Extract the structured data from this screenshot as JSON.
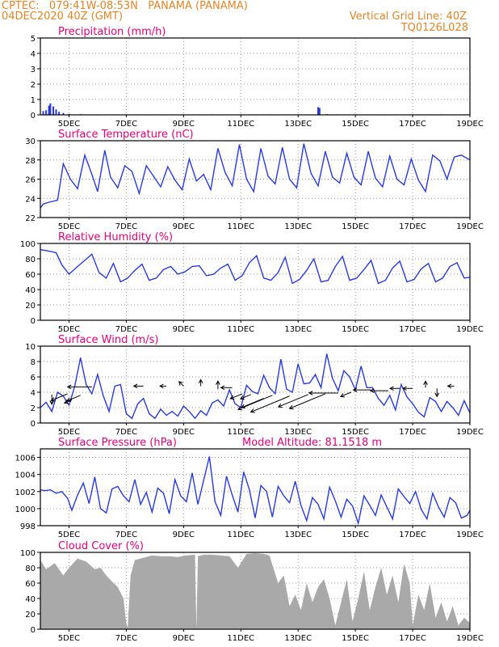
{
  "header": {
    "line1": "CPTEC:   079:41W-08:53N   PANAMA (PANAMA)",
    "line2_left": "04DEC2020 40Z (GMT)",
    "line2_right": "Vertical Grid Line: 40Z",
    "line3_right": "TQ0126L028"
  },
  "colors": {
    "header": "#e0852a",
    "title": "#e0007a",
    "line": "#2a3ad8",
    "cloud": "#a9a9a9",
    "grid": "#999999"
  },
  "x_axis": {
    "start": "04DEC2020 00Z",
    "end": "19DEC2020 00Z",
    "tick_labels": [
      "5DEC",
      "7DEC",
      "9DEC",
      "11DEC",
      "13DEC",
      "15DEC",
      "17DEC",
      "19DEC"
    ],
    "tick_days": [
      5,
      7,
      9,
      11,
      13,
      15,
      17,
      19
    ]
  },
  "chart_data": [
    {
      "id": "precip",
      "type": "bar",
      "title": "Precipitation (mm/h)",
      "ylim": [
        0,
        5
      ],
      "yticks": [
        0,
        1,
        2,
        3,
        4,
        5
      ],
      "x": [
        4.1,
        4.2,
        4.3,
        4.35,
        4.45,
        4.55,
        4.65,
        4.8,
        5.0,
        5.4,
        6.0,
        7.0,
        8.0,
        9.0,
        10.0,
        11.0,
        12.0,
        13.0,
        13.7,
        13.75,
        14.0,
        15.0,
        16.0,
        17.0,
        18.0,
        18.8
      ],
      "values": [
        0.25,
        0.3,
        0.6,
        0.75,
        0.55,
        0.35,
        0.2,
        0.12,
        0.06,
        0.04,
        0.03,
        0.03,
        0.03,
        0.03,
        0.03,
        0.03,
        0.03,
        0.03,
        0.5,
        0.45,
        0.05,
        0.03,
        0.03,
        0.03,
        0.03,
        0.03
      ]
    },
    {
      "id": "temp",
      "type": "line",
      "title": "Surface Temperature (nC)",
      "ylim": [
        22,
        30
      ],
      "yticks": [
        22,
        24,
        26,
        28,
        30
      ],
      "x": [
        4.0,
        4.1,
        4.3,
        4.6,
        4.8,
        5.05,
        5.3,
        5.55,
        5.8,
        6.0,
        6.25,
        6.45,
        6.7,
        6.95,
        7.2,
        7.45,
        7.7,
        7.95,
        8.2,
        8.45,
        8.7,
        8.95,
        9.2,
        9.45,
        9.7,
        9.95,
        10.2,
        10.45,
        10.7,
        10.95,
        11.2,
        11.45,
        11.7,
        11.95,
        12.2,
        12.45,
        12.7,
        12.95,
        13.2,
        13.45,
        13.7,
        13.95,
        14.2,
        14.45,
        14.7,
        14.95,
        15.2,
        15.45,
        15.7,
        15.95,
        16.2,
        16.45,
        16.7,
        16.95,
        17.2,
        17.45,
        17.7,
        17.95,
        18.2,
        18.45,
        18.7,
        19.0
      ],
      "values": [
        23.0,
        23.4,
        23.6,
        23.8,
        27.6,
        26.0,
        25.0,
        28.5,
        26.5,
        24.7,
        29.0,
        26.2,
        25.1,
        27.4,
        26.8,
        24.5,
        27.4,
        26.3,
        25.2,
        27.3,
        25.9,
        24.9,
        28.1,
        25.8,
        26.5,
        24.9,
        29.2,
        26.7,
        25.3,
        29.6,
        26.0,
        24.7,
        29.2,
        26.3,
        25.5,
        29.3,
        26.0,
        25.1,
        29.7,
        26.6,
        25.3,
        28.9,
        26.2,
        25.6,
        28.7,
        26.2,
        25.4,
        28.9,
        26.1,
        25.2,
        28.4,
        26.0,
        25.4,
        28.1,
        25.9,
        24.7,
        28.5,
        27.9,
        26.0,
        28.3,
        28.5,
        28.0
      ]
    },
    {
      "id": "rh",
      "type": "line",
      "title": "Relative Humidity (%)",
      "ylim": [
        0,
        100
      ],
      "yticks": [
        0,
        20,
        40,
        60,
        80,
        100
      ],
      "x": [
        4.0,
        4.3,
        4.55,
        4.75,
        5.0,
        5.3,
        5.55,
        5.8,
        6.05,
        6.3,
        6.55,
        6.8,
        7.05,
        7.3,
        7.55,
        7.8,
        8.05,
        8.3,
        8.55,
        8.8,
        9.05,
        9.3,
        9.55,
        9.8,
        10.05,
        10.3,
        10.55,
        10.8,
        11.05,
        11.3,
        11.55,
        11.8,
        12.05,
        12.3,
        12.55,
        12.8,
        13.05,
        13.3,
        13.55,
        13.8,
        14.05,
        14.3,
        14.55,
        14.8,
        15.05,
        15.3,
        15.55,
        15.8,
        16.05,
        16.3,
        16.55,
        16.8,
        17.05,
        17.3,
        17.55,
        17.8,
        18.05,
        18.3,
        18.55,
        18.8,
        19.0
      ],
      "values": [
        92,
        90,
        88,
        72,
        60,
        70,
        78,
        86,
        62,
        55,
        74,
        50,
        55,
        65,
        73,
        52,
        55,
        66,
        70,
        60,
        63,
        70,
        71,
        58,
        60,
        68,
        73,
        52,
        58,
        75,
        84,
        55,
        52,
        62,
        82,
        48,
        53,
        65,
        80,
        50,
        52,
        70,
        83,
        52,
        55,
        66,
        78,
        48,
        52,
        68,
        77,
        50,
        53,
        67,
        74,
        50,
        55,
        70,
        75,
        55,
        56
      ]
    },
    {
      "id": "wind",
      "type": "line",
      "title": "Surface Wind (m/s)",
      "ylim": [
        0,
        10
      ],
      "yticks": [
        0,
        2,
        4,
        6,
        8,
        10
      ],
      "x": [
        4.0,
        4.2,
        4.4,
        4.6,
        4.8,
        5.0,
        5.2,
        5.4,
        5.6,
        5.8,
        6.0,
        6.2,
        6.4,
        6.6,
        6.8,
        7.0,
        7.2,
        7.4,
        7.6,
        7.8,
        8.0,
        8.2,
        8.4,
        8.6,
        8.8,
        9.0,
        9.2,
        9.4,
        9.6,
        9.8,
        10.0,
        10.2,
        10.4,
        10.6,
        10.8,
        11.0,
        11.2,
        11.4,
        11.6,
        11.8,
        12.0,
        12.2,
        12.4,
        12.6,
        12.8,
        13.0,
        13.2,
        13.4,
        13.6,
        13.8,
        14.0,
        14.2,
        14.4,
        14.6,
        14.8,
        15.0,
        15.2,
        15.4,
        15.6,
        15.8,
        16.0,
        16.2,
        16.4,
        16.6,
        16.8,
        17.0,
        17.2,
        17.4,
        17.6,
        17.8,
        18.0,
        18.2,
        18.4,
        18.6,
        18.8,
        19.0
      ],
      "values": [
        2.0,
        2.7,
        1.5,
        4.0,
        3.5,
        2.3,
        4.8,
        8.5,
        5.0,
        3.8,
        6.3,
        3.5,
        1.5,
        4.8,
        5.0,
        1.2,
        0.6,
        2.5,
        3.2,
        1.2,
        0.6,
        1.8,
        1.0,
        1.5,
        0.9,
        2.2,
        1.5,
        0.6,
        1.6,
        1.0,
        2.6,
        3.0,
        2.2,
        4.3,
        2.5,
        2.0,
        4.9,
        4.1,
        3.8,
        6.2,
        4.6,
        3.8,
        8.3,
        4.4,
        4.0,
        7.7,
        5.1,
        5.2,
        6.3,
        4.6,
        9.0,
        5.8,
        4.2,
        6.8,
        6.0,
        4.3,
        7.4,
        4.6,
        4.6,
        3.2,
        2.3,
        3.6,
        1.7,
        5.0,
        3.4,
        2.5,
        1.4,
        0.8,
        3.3,
        2.8,
        1.5,
        2.8,
        2.0,
        1.0,
        2.9,
        1.3
      ],
      "arrows": [
        {
          "x": 4.4,
          "y": 3.7,
          "dir": "s",
          "len": 12
        },
        {
          "x": 4.95,
          "y": 3.8,
          "dir": "sw",
          "len": 22
        },
        {
          "x": 5.1,
          "y": 3.0,
          "dir": "sw",
          "len": 10
        },
        {
          "x": 5.4,
          "y": 3.6,
          "dir": "sw",
          "len": 18
        },
        {
          "x": 5.8,
          "y": 4.7,
          "dir": "w",
          "len": 30
        },
        {
          "x": 7.6,
          "y": 4.8,
          "dir": "w",
          "len": 12
        },
        {
          "x": 8.4,
          "y": 4.8,
          "dir": "w",
          "len": 8
        },
        {
          "x": 9.0,
          "y": 4.8,
          "dir": "nw",
          "len": 8
        },
        {
          "x": 9.6,
          "y": 4.8,
          "dir": "n",
          "len": 8
        },
        {
          "x": 10.2,
          "y": 4.4,
          "dir": "n",
          "len": 10
        },
        {
          "x": 10.7,
          "y": 4.6,
          "dir": "w",
          "len": 14
        },
        {
          "x": 11.05,
          "y": 3.8,
          "dir": "sw",
          "len": 16
        },
        {
          "x": 11.35,
          "y": 3.7,
          "dir": "sw",
          "len": 14
        },
        {
          "x": 11.8,
          "y": 3.2,
          "dir": "sw",
          "len": 30
        },
        {
          "x": 12.1,
          "y": 3.6,
          "dir": "sw",
          "len": 46
        },
        {
          "x": 12.7,
          "y": 3.5,
          "dir": "sw",
          "len": 52
        },
        {
          "x": 13.35,
          "y": 3.7,
          "dir": "sw",
          "len": 40
        },
        {
          "x": 13.95,
          "y": 3.8,
          "dir": "sw",
          "len": 48
        },
        {
          "x": 14.4,
          "y": 3.9,
          "dir": "w",
          "len": 36
        },
        {
          "x": 14.85,
          "y": 4.0,
          "dir": "sw",
          "len": 14
        },
        {
          "x": 15.55,
          "y": 4.3,
          "dir": "w",
          "len": 22
        },
        {
          "x": 16.15,
          "y": 4.2,
          "dir": "w",
          "len": 22
        },
        {
          "x": 16.55,
          "y": 4.5,
          "dir": "w",
          "len": 12
        },
        {
          "x": 17.0,
          "y": 4.5,
          "dir": "w",
          "len": 12
        },
        {
          "x": 17.45,
          "y": 4.6,
          "dir": "n",
          "len": 8
        },
        {
          "x": 17.85,
          "y": 4.5,
          "dir": "s",
          "len": 10
        },
        {
          "x": 18.45,
          "y": 4.8,
          "dir": "w",
          "len": 8
        }
      ]
    },
    {
      "id": "pres",
      "type": "line",
      "title": "Surface Pressure (hPa)",
      "subtitle": "Model Altitude: 81.1518 m",
      "ylim": [
        998,
        1007
      ],
      "yticks": [
        998,
        1000,
        1002,
        1004,
        1006
      ],
      "x": [
        4.0,
        4.15,
        4.35,
        4.55,
        4.75,
        4.95,
        5.1,
        5.3,
        5.5,
        5.7,
        5.9,
        6.1,
        6.3,
        6.5,
        6.7,
        6.9,
        7.1,
        7.3,
        7.5,
        7.7,
        7.9,
        8.1,
        8.3,
        8.5,
        8.7,
        8.9,
        9.1,
        9.3,
        9.5,
        9.7,
        9.9,
        10.1,
        10.3,
        10.5,
        10.7,
        10.9,
        11.1,
        11.3,
        11.5,
        11.7,
        11.9,
        12.1,
        12.3,
        12.5,
        12.7,
        12.9,
        13.1,
        13.3,
        13.5,
        13.7,
        13.9,
        14.1,
        14.3,
        14.5,
        14.7,
        14.9,
        15.1,
        15.3,
        15.5,
        15.7,
        15.9,
        16.1,
        16.3,
        16.5,
        16.7,
        16.9,
        17.1,
        17.3,
        17.5,
        17.7,
        17.9,
        18.1,
        18.3,
        18.5,
        18.7,
        18.9,
        19.0
      ],
      "values": [
        1002.2,
        1002.1,
        1002.2,
        1001.8,
        1002.0,
        1001.2,
        999.8,
        1001.6,
        1003.0,
        1000.6,
        1003.7,
        1000.0,
        999.5,
        1002.3,
        1002.6,
        1001.5,
        1000.8,
        1003.4,
        1000.5,
        1001.9,
        999.6,
        1002.4,
        1001.8,
        999.4,
        1003.4,
        1001.5,
        1000.8,
        1004.2,
        1000.5,
        1003.3,
        1006.1,
        1000.8,
        999.2,
        1003.8,
        1001.6,
        999.6,
        1004.3,
        1002.2,
        998.9,
        1002.7,
        1002.0,
        999.0,
        1002.6,
        1001.5,
        1000.7,
        1003.2,
        1000.4,
        998.6,
        1001.3,
        1000.5,
        998.8,
        1002.5,
        1000.9,
        999.0,
        1001.1,
        1000.3,
        998.3,
        1001.5,
        1000.4,
        999.2,
        1001.6,
        1000.2,
        998.8,
        1002.3,
        1001.4,
        1000.6,
        1002.0,
        999.9,
        998.8,
        1001.8,
        1000.2,
        999.0,
        1001.3,
        1000.7,
        998.9,
        999.2,
        999.8
      ]
    },
    {
      "id": "cloud",
      "type": "area",
      "title": "Cloud Cover (%)",
      "ylim": [
        0,
        100
      ],
      "yticks": [
        0,
        20,
        40,
        60,
        80,
        100
      ],
      "x": [
        4.0,
        4.2,
        4.5,
        4.8,
        5.0,
        5.3,
        5.6,
        5.9,
        6.1,
        6.3,
        6.5,
        6.7,
        6.9,
        7.0,
        7.05,
        7.15,
        7.3,
        7.6,
        7.9,
        8.2,
        8.5,
        8.8,
        9.1,
        9.4,
        9.45,
        9.5,
        9.7,
        10.0,
        10.3,
        10.6,
        10.9,
        11.2,
        11.5,
        11.8,
        12.0,
        12.3,
        12.5,
        12.7,
        12.9,
        13.1,
        13.3,
        13.5,
        13.7,
        13.9,
        14.1,
        14.3,
        14.5,
        14.7,
        14.9,
        15.1,
        15.3,
        15.5,
        15.7,
        15.9,
        16.1,
        16.3,
        16.5,
        16.7,
        16.9,
        17.0,
        17.2,
        17.4,
        17.6,
        17.8,
        18.0,
        18.2,
        18.4,
        18.6,
        18.8,
        19.0
      ],
      "values": [
        90,
        78,
        86,
        70,
        80,
        92,
        88,
        78,
        80,
        70,
        62,
        55,
        40,
        8,
        2,
        70,
        90,
        93,
        96,
        95,
        95,
        94,
        96,
        97,
        0,
        95,
        97,
        97,
        96,
        95,
        80,
        98,
        99,
        98,
        96,
        60,
        70,
        30,
        45,
        25,
        60,
        35,
        55,
        65,
        40,
        5,
        35,
        65,
        10,
        40,
        75,
        25,
        55,
        80,
        45,
        70,
        35,
        85,
        60,
        5,
        45,
        25,
        60,
        15,
        35,
        10,
        30,
        5,
        15,
        8
      ]
    }
  ]
}
